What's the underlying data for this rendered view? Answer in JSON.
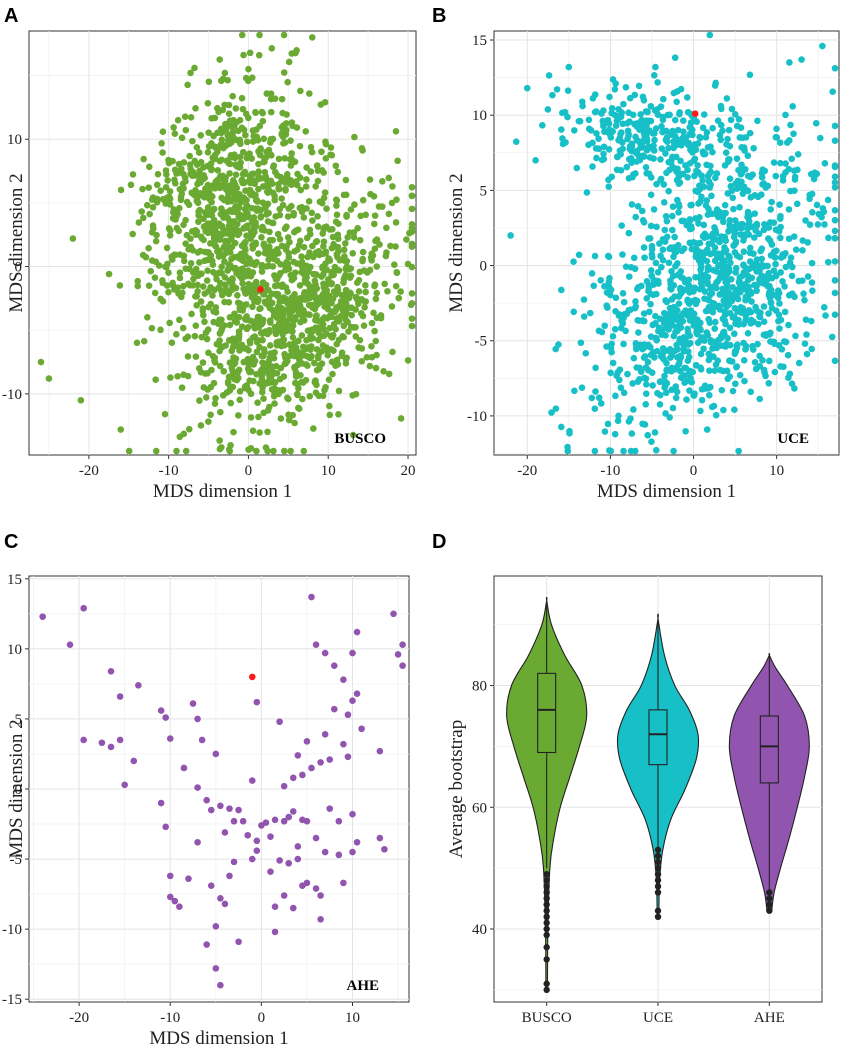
{
  "figure": {
    "panels": [
      "A",
      "B",
      "C",
      "D"
    ]
  },
  "chart_data": [
    {
      "panel": "A",
      "type": "scatter",
      "xlabel": "MDS dimension 1",
      "ylabel": "MDS dimension 2",
      "annotation": "BUSCO",
      "xlim": [
        -27.5,
        21
      ],
      "ylim": [
        -14.8,
        18.5
      ],
      "xticks": [
        -20,
        -10,
        0,
        10,
        20
      ],
      "yticks": [
        -10,
        0,
        10
      ],
      "color": "#6aaa32",
      "highlight_color": "#ff1a1a",
      "highlight": {
        "x": 1.5,
        "y": -1.8
      },
      "n_points": 1750,
      "clusters": [
        {
          "cx": -3,
          "cy": 5,
          "sx": 5.5,
          "sy": 4.0,
          "angle": 32,
          "n": 800
        },
        {
          "cx": 6,
          "cy": -4,
          "sx": 7.0,
          "sy": 4.0,
          "angle": 28,
          "n": 950
        }
      ],
      "extra_points": [
        {
          "x": -26,
          "y": -7.5
        },
        {
          "x": -25,
          "y": -8.8
        },
        {
          "x": -22,
          "y": 2.2
        },
        {
          "x": -21,
          "y": -10.5
        },
        {
          "x": -16,
          "y": -12.8
        },
        {
          "x": 8,
          "y": 18
        },
        {
          "x": 0,
          "y": 15.5
        },
        {
          "x": 20,
          "y": 0.2
        },
        {
          "x": 18,
          "y": 5
        }
      ]
    },
    {
      "panel": "B",
      "type": "scatter",
      "xlabel": "MDS dimension 1",
      "ylabel": "MDS dimension 2",
      "annotation": "UCE",
      "xlim": [
        -24,
        17.5
      ],
      "ylim": [
        -12.6,
        15.6
      ],
      "xticks": [
        -20,
        -10,
        0,
        10
      ],
      "yticks": [
        -10,
        -5,
        0,
        5,
        10,
        15
      ],
      "color": "#17bfc7",
      "highlight_color": "#ff1a1a",
      "highlight": {
        "x": 0.2,
        "y": 10.1
      },
      "n_points": 1400,
      "clusters": [
        {
          "cx": -5,
          "cy": 8.5,
          "sx": 6.0,
          "sy": 1.8,
          "angle": -5,
          "n": 330
        },
        {
          "cx": 2,
          "cy": -2,
          "sx": 7.5,
          "sy": 3.8,
          "angle": 22,
          "n": 1070
        }
      ],
      "extra_points": [
        {
          "x": -22,
          "y": 2
        },
        {
          "x": -20,
          "y": 11.8
        },
        {
          "x": -19,
          "y": 7
        },
        {
          "x": 15.5,
          "y": 14.6
        },
        {
          "x": 15.8,
          "y": 6.8
        },
        {
          "x": 13,
          "y": 13.7
        },
        {
          "x": -15,
          "y": 13.2
        }
      ]
    },
    {
      "panel": "C",
      "type": "scatter",
      "xlabel": "MDS dimension 1",
      "ylabel": "MDS dimension 2",
      "annotation": "AHE",
      "xlim": [
        -25.5,
        16.2
      ],
      "ylim": [
        -15.2,
        15.2
      ],
      "xticks": [
        -20,
        -10,
        0,
        10
      ],
      "yticks": [
        -15,
        -10,
        -5,
        0,
        5,
        10,
        15
      ],
      "color": "#9155b0",
      "highlight_color": "#ff1a1a",
      "highlight": {
        "x": -1,
        "y": 8
      },
      "points": [
        [
          -24,
          12.3
        ],
        [
          -21,
          10.3
        ],
        [
          -19.5,
          12.9
        ],
        [
          -19.5,
          3.5
        ],
        [
          -17.5,
          3.3
        ],
        [
          -16.5,
          8.4
        ],
        [
          -16.5,
          3.0
        ],
        [
          -15.5,
          6.6
        ],
        [
          -15.5,
          3.5
        ],
        [
          -15,
          0.3
        ],
        [
          -14,
          2.0
        ],
        [
          -13.5,
          7.4
        ],
        [
          -11,
          -1.0
        ],
        [
          -11,
          5.6
        ],
        [
          -10.5,
          5.1
        ],
        [
          -10.5,
          -2.7
        ],
        [
          -10,
          3.6
        ],
        [
          -10,
          -6.2
        ],
        [
          -10,
          -7.7
        ],
        [
          -9.5,
          -8.0
        ],
        [
          -9,
          -8.4
        ],
        [
          -8.5,
          1.5
        ],
        [
          -8,
          -6.4
        ],
        [
          -7.5,
          6.1
        ],
        [
          -7,
          5.0
        ],
        [
          -7,
          0.1
        ],
        [
          -7,
          -3.8
        ],
        [
          -6.5,
          3.5
        ],
        [
          -6,
          -0.8
        ],
        [
          -6,
          -11.1
        ],
        [
          -5.5,
          -1.5
        ],
        [
          -5.5,
          -6.9
        ],
        [
          -5,
          2.5
        ],
        [
          -5,
          -12.8
        ],
        [
          -5,
          -9.8
        ],
        [
          -4.5,
          -14.0
        ],
        [
          -4.5,
          -1.2
        ],
        [
          -4.5,
          -7.8
        ],
        [
          -4,
          -3.1
        ],
        [
          -4,
          -8.2
        ],
        [
          -3.5,
          -1.4
        ],
        [
          -3.5,
          -6.2
        ],
        [
          -3,
          -5.2
        ],
        [
          -3,
          -2.3
        ],
        [
          -2.5,
          -1.5
        ],
        [
          -2.5,
          -10.9
        ],
        [
          -2,
          -2.3
        ],
        [
          -1.5,
          -3.3
        ],
        [
          -1,
          0.6
        ],
        [
          -1,
          -5.0
        ],
        [
          -0.5,
          6.2
        ],
        [
          -0.5,
          -3.7
        ],
        [
          -0.5,
          -4.4
        ],
        [
          0,
          -2.6
        ],
        [
          0.5,
          -2.4
        ],
        [
          1,
          -5.9
        ],
        [
          1,
          -3.4
        ],
        [
          1.5,
          -2.2
        ],
        [
          1.5,
          -8.4
        ],
        [
          1.5,
          -10.2
        ],
        [
          2,
          4.8
        ],
        [
          2,
          -5.1
        ],
        [
          2.5,
          0.2
        ],
        [
          2.5,
          -2.3
        ],
        [
          2.5,
          -7.6
        ],
        [
          3,
          -2.0
        ],
        [
          3,
          -5.3
        ],
        [
          3.5,
          0.8
        ],
        [
          3.5,
          -1.6
        ],
        [
          3.5,
          -8.5
        ],
        [
          4,
          2.4
        ],
        [
          4,
          -4.1
        ],
        [
          4,
          -5.0
        ],
        [
          4.5,
          1.0
        ],
        [
          4.5,
          -2.2
        ],
        [
          4.5,
          -6.9
        ],
        [
          5,
          3.4
        ],
        [
          5,
          -2.3
        ],
        [
          5,
          -6.7
        ],
        [
          5.5,
          1.5
        ],
        [
          5.5,
          13.7
        ],
        [
          6,
          -3.5
        ],
        [
          6,
          -7.1
        ],
        [
          6,
          10.3
        ],
        [
          6.5,
          1.9
        ],
        [
          6.5,
          -9.3
        ],
        [
          6.5,
          -7.6
        ],
        [
          7,
          -4.5
        ],
        [
          7,
          3.9
        ],
        [
          7,
          9.7
        ],
        [
          7.5,
          -1.4
        ],
        [
          7.5,
          2.1
        ],
        [
          8,
          5.7
        ],
        [
          8,
          8.8
        ],
        [
          8.5,
          -2.3
        ],
        [
          8.5,
          -4.7
        ],
        [
          9,
          3.2
        ],
        [
          9,
          -6.7
        ],
        [
          9,
          7.8
        ],
        [
          9.5,
          5.3
        ],
        [
          9.5,
          2.3
        ],
        [
          10,
          6.3
        ],
        [
          10,
          -1.8
        ],
        [
          10,
          -4.5
        ],
        [
          10,
          9.7
        ],
        [
          10.5,
          6.8
        ],
        [
          10.5,
          -3.8
        ],
        [
          10.5,
          11.2
        ],
        [
          11,
          4.3
        ],
        [
          13,
          2.7
        ],
        [
          13,
          -3.5
        ],
        [
          13.5,
          -4.3
        ],
        [
          14.5,
          12.5
        ],
        [
          15,
          9.6
        ],
        [
          15.5,
          10.3
        ],
        [
          15.5,
          8.8
        ]
      ]
    },
    {
      "panel": "D",
      "type": "violin",
      "xlabel": "",
      "ylabel": "Average bootstrap",
      "ylim": [
        28,
        98
      ],
      "yticks": [
        40,
        60,
        80
      ],
      "categories": [
        "BUSCO",
        "UCE",
        "AHE"
      ],
      "series": [
        {
          "name": "BUSCO",
          "color": "#6aaa32",
          "min": 30,
          "max": 94,
          "q1": 69,
          "median": 76,
          "q3": 82,
          "whisker_low": 50,
          "whisker_high": 94,
          "density": [
            [
              30,
              0.02
            ],
            [
              40,
              0.03
            ],
            [
              50,
              0.08
            ],
            [
              55,
              0.18
            ],
            [
              60,
              0.34
            ],
            [
              65,
              0.58
            ],
            [
              70,
              0.82
            ],
            [
              75,
              1.0
            ],
            [
              80,
              0.88
            ],
            [
              85,
              0.45
            ],
            [
              90,
              0.12
            ],
            [
              94,
              0.0
            ]
          ],
          "outliers": [
            49,
            48,
            47,
            46,
            45,
            44,
            43,
            42,
            41,
            40,
            39,
            37,
            35,
            31,
            30
          ]
        },
        {
          "name": "UCE",
          "color": "#17bfc7",
          "min": 42,
          "max": 91,
          "q1": 67,
          "median": 72,
          "q3": 76,
          "whisker_low": 53,
          "whisker_high": 91,
          "density": [
            [
              42,
              0.02
            ],
            [
              48,
              0.04
            ],
            [
              53,
              0.12
            ],
            [
              58,
              0.32
            ],
            [
              63,
              0.68
            ],
            [
              68,
              0.96
            ],
            [
              72,
              1.0
            ],
            [
              76,
              0.78
            ],
            [
              80,
              0.42
            ],
            [
              85,
              0.16
            ],
            [
              91,
              0.0
            ]
          ],
          "outliers": [
            53,
            52,
            51,
            50,
            49,
            48,
            47,
            46,
            43,
            42
          ]
        },
        {
          "name": "AHE",
          "color": "#9155b0",
          "min": 43,
          "max": 85,
          "q1": 64,
          "median": 70,
          "q3": 75,
          "whisker_low": 46,
          "whisker_high": 85,
          "density": [
            [
              43,
              0.06
            ],
            [
              46,
              0.12
            ],
            [
              50,
              0.28
            ],
            [
              55,
              0.5
            ],
            [
              60,
              0.7
            ],
            [
              65,
              0.88
            ],
            [
              70,
              1.0
            ],
            [
              75,
              0.88
            ],
            [
              80,
              0.45
            ],
            [
              83,
              0.15
            ],
            [
              85,
              0.0
            ]
          ],
          "outliers": [
            46,
            45,
            44,
            43
          ]
        }
      ]
    }
  ]
}
